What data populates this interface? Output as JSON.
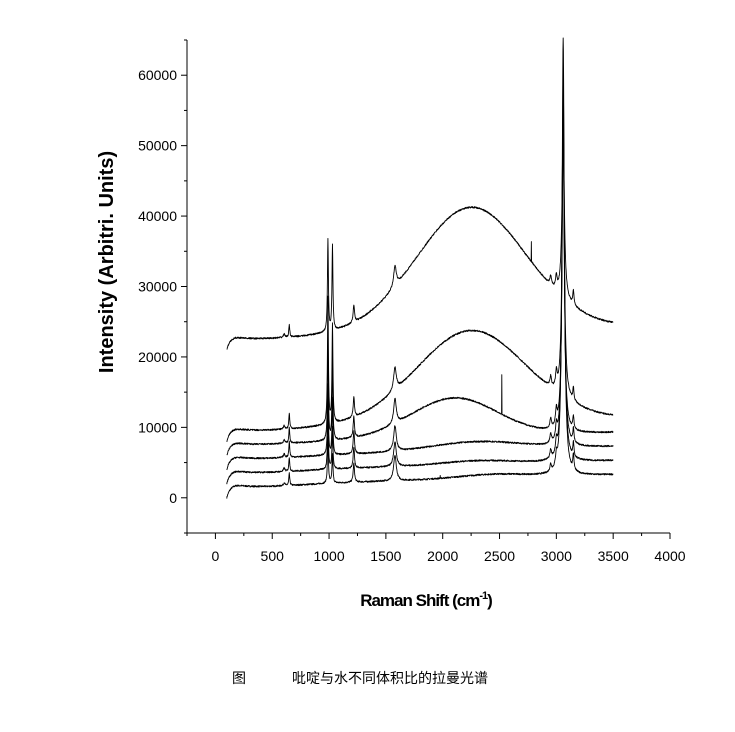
{
  "caption": {
    "label": "图",
    "text": "吡啶与水不同体积比的拉曼光谱"
  },
  "chart_data": {
    "type": "line",
    "xlabel": "Raman Shift (cm",
    "xlabel_sup": "-1",
    "xlabel_tail": ")",
    "ylabel": "Intensity (Arbitri. Units)",
    "xlim": [
      -250,
      4000
    ],
    "ylim": [
      -5000,
      65000
    ],
    "xticks": [
      0,
      500,
      1000,
      1500,
      2000,
      2500,
      3000,
      3500,
      4000
    ],
    "yticks": [
      0,
      10000,
      20000,
      30000,
      40000,
      50000,
      60000
    ],
    "x_range": [
      100,
      3500
    ],
    "grid": false,
    "legend": "none",
    "line_color": "#000000",
    "series": [
      {
        "baseline": 0,
        "drift": 1500,
        "bumps": [
          [
            2450,
            500,
            300
          ]
        ],
        "peaks": [
          [
            605,
            400,
            8
          ],
          [
            650,
            1700,
            5
          ],
          [
            990,
            6500,
            5
          ],
          [
            1030,
            4200,
            5
          ],
          [
            1218,
            2700,
            7
          ],
          [
            1580,
            3600,
            14
          ],
          [
            3060,
            62000,
            12
          ],
          [
            3000,
            1500,
            8
          ],
          [
            2950,
            1000,
            8
          ],
          [
            3150,
            2200,
            6
          ]
        ],
        "spikes": [
          [
            1978,
            400
          ]
        ]
      },
      {
        "baseline": 2000,
        "drift": 1500,
        "bumps": [
          [
            2300,
            500,
            300
          ]
        ],
        "peaks": [
          [
            605,
            500,
            8
          ],
          [
            650,
            2000,
            5
          ],
          [
            990,
            8000,
            5
          ],
          [
            1030,
            6000,
            5
          ],
          [
            1218,
            3000,
            7
          ],
          [
            1580,
            3500,
            14
          ],
          [
            3060,
            55000,
            12
          ],
          [
            3000,
            1800,
            8
          ],
          [
            2950,
            1200,
            8
          ],
          [
            3150,
            2000,
            6
          ]
        ],
        "spikes": []
      },
      {
        "baseline": 4000,
        "drift": 1500,
        "bumps": [
          [
            2300,
            1200,
            400
          ]
        ],
        "peaks": [
          [
            605,
            500,
            8
          ],
          [
            650,
            2200,
            5
          ],
          [
            990,
            10000,
            5
          ],
          [
            1030,
            8000,
            5
          ],
          [
            1218,
            3200,
            7
          ],
          [
            1580,
            3600,
            14
          ],
          [
            3060,
            48000,
            12
          ],
          [
            3000,
            2000,
            8
          ],
          [
            2950,
            1300,
            8
          ],
          [
            3150,
            2000,
            6
          ]
        ],
        "spikes": []
      },
      {
        "baseline": 6000,
        "drift": 1500,
        "bumps": [
          [
            2100,
            5500,
            380
          ]
        ],
        "peaks": [
          [
            605,
            500,
            8
          ],
          [
            650,
            2200,
            5
          ],
          [
            990,
            14000,
            5
          ],
          [
            1030,
            11000,
            5
          ],
          [
            1218,
            3000,
            7
          ],
          [
            1580,
            3500,
            14
          ],
          [
            3060,
            42000,
            12
          ],
          [
            3000,
            2200,
            8
          ],
          [
            2950,
            1400,
            8
          ],
          [
            3150,
            1800,
            6
          ]
        ],
        "spikes": [
          [
            2520,
            5500
          ]
        ]
      },
      {
        "baseline": 8000,
        "drift": 1500,
        "bumps": [
          [
            2250,
            13000,
            480
          ]
        ],
        "peaks": [
          [
            605,
            500,
            8
          ],
          [
            650,
            2200,
            5
          ],
          [
            990,
            18000,
            5
          ],
          [
            1030,
            14000,
            5
          ],
          [
            1218,
            2800,
            7
          ],
          [
            1580,
            3300,
            14
          ],
          [
            3060,
            38000,
            12
          ],
          [
            3000,
            2200,
            8
          ],
          [
            2950,
            1400,
            8
          ],
          [
            3150,
            1800,
            6
          ]
        ],
        "spikes": []
      },
      {
        "baseline": 21000,
        "drift": 1500,
        "bumps": [
          [
            2250,
            17500,
            480
          ]
        ],
        "peaks": [
          [
            605,
            500,
            8
          ],
          [
            650,
            1800,
            5
          ],
          [
            990,
            13000,
            5
          ],
          [
            1030,
            12000,
            5
          ],
          [
            1218,
            2500,
            7
          ],
          [
            1580,
            3000,
            14
          ],
          [
            3060,
            24000,
            12
          ],
          [
            3000,
            1800,
            8
          ],
          [
            2950,
            1200,
            8
          ],
          [
            3150,
            2000,
            6
          ]
        ],
        "spikes": [
          [
            2780,
            2800
          ]
        ]
      }
    ]
  }
}
